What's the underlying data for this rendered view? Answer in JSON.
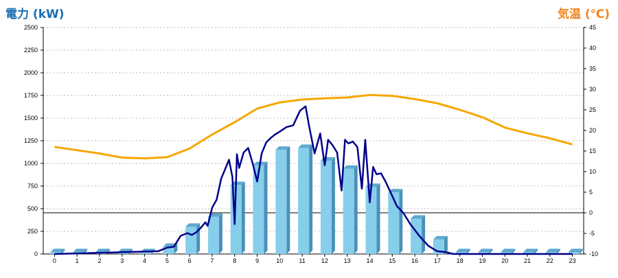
{
  "chart_data": {
    "type": "bar",
    "left_axis_title": "電力 (kW)",
    "right_axis_title": "気温 (℃)",
    "colors": {
      "bar_front": "#87CEEB",
      "bar_side": "#4A90B8",
      "bar_top": "#5FA8D0",
      "power_line": "#00008B",
      "temp_line": "#F7A600",
      "grid": "#BBBBBB"
    },
    "left_axis": {
      "min": 0,
      "max": 2500,
      "ticks": [
        "0",
        "250",
        "500",
        "750",
        "1000",
        "1250",
        "1500",
        "1750",
        "2000",
        "2250",
        "2500"
      ]
    },
    "right_axis": {
      "min": -10,
      "max": 45,
      "ticks": [
        "-10",
        "-5",
        "0",
        "5",
        "10",
        "15",
        "20",
        "25",
        "30",
        "35",
        "40",
        "45"
      ]
    },
    "categories": [
      "0",
      "1",
      "2",
      "3",
      "4",
      "5",
      "6",
      "7",
      "8",
      "9",
      "10",
      "11",
      "12",
      "13",
      "14",
      "15",
      "16",
      "17",
      "18",
      "19",
      "20",
      "21",
      "22",
      "23"
    ],
    "series": [
      {
        "kind": "bar",
        "axis": "left",
        "values": [
          20,
          20,
          20,
          20,
          20,
          80,
          300,
          410,
          760,
          980,
          1150,
          1170,
          1030,
          940,
          740,
          680,
          390,
          160,
          20,
          20,
          20,
          20,
          20,
          20
        ]
      },
      {
        "kind": "line",
        "axis": "right",
        "values": [
          16,
          15.2,
          14.4,
          13.4,
          13.2,
          13.5,
          15.6,
          19,
          22,
          25.3,
          26.8,
          27.5,
          27.8,
          28,
          28.6,
          28.4,
          27.6,
          26.6,
          25,
          23.2,
          20.7,
          19.3,
          18.1,
          16.6
        ]
      },
      {
        "kind": "line",
        "axis": "left",
        "x": [
          0,
          4.6,
          5,
          5.3,
          5.6,
          5.9,
          6.1,
          6.3,
          6.5,
          6.7,
          6.8,
          7,
          7.2,
          7.4,
          7.6,
          7.75,
          7.9,
          8,
          8.1,
          8.2,
          8.4,
          8.6,
          8.8,
          9,
          9.2,
          9.4,
          9.6,
          9.8,
          10,
          10.3,
          10.6,
          10.9,
          11.15,
          11.3,
          11.55,
          11.8,
          12,
          12.15,
          12.35,
          12.55,
          12.75,
          12.9,
          13.05,
          13.25,
          13.45,
          13.65,
          13.8,
          14,
          14.15,
          14.3,
          14.5,
          14.7,
          14.85,
          15,
          15.2,
          15.5,
          15.8,
          16.2,
          16.6,
          17,
          17.4,
          17.7,
          18,
          20,
          23
        ],
        "values": [
          0,
          30,
          70,
          80,
          200,
          230,
          210,
          240,
          290,
          350,
          310,
          510,
          600,
          830,
          950,
          1040,
          850,
          330,
          1100,
          950,
          1120,
          1170,
          1000,
          800,
          1110,
          1230,
          1280,
          1320,
          1350,
          1400,
          1420,
          1580,
          1630,
          1420,
          1110,
          1330,
          980,
          1260,
          1200,
          1120,
          700,
          1260,
          1220,
          1240,
          1180,
          720,
          1260,
          570,
          960,
          880,
          890,
          800,
          720,
          640,
          530,
          450,
          330,
          200,
          90,
          30,
          20,
          0,
          0,
          0,
          0
        ]
      }
    ],
    "grid": true
  }
}
